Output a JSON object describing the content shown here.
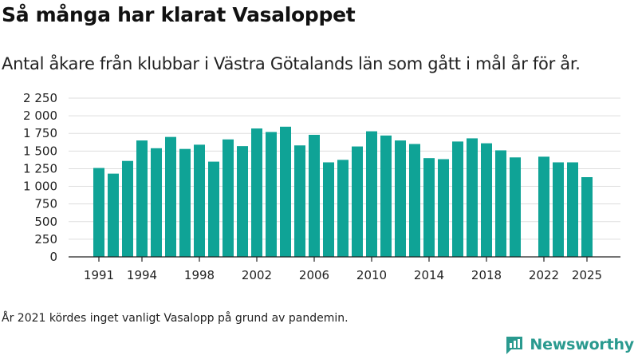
{
  "title": "Så många har klarat Vasaloppet",
  "subtitle": "Antal åkare från klubbar i Västra Götalands län som gått i mål år för år.",
  "footnote": "År 2021 kördes inget vanligt Vasalopp på grund av pandemin.",
  "brand": "Newsworthy",
  "colors": {
    "bar": "#0fa396",
    "grid": "#dddddd",
    "axis": "#222222",
    "brand": "#2a9a8f"
  },
  "chart_data": {
    "type": "bar",
    "ylim": [
      0,
      2250
    ],
    "yticks": [
      0,
      250,
      500,
      750,
      1000,
      1250,
      1500,
      1750,
      2000,
      2250
    ],
    "ytick_labels": [
      "0",
      "250",
      "500",
      "750",
      "1 000",
      "1 250",
      "1 500",
      "1 750",
      "2 000",
      "2 250"
    ],
    "xtick_labels": [
      "1991",
      "1994",
      "1998",
      "2002",
      "2006",
      "2010",
      "2014",
      "2018",
      "2022",
      "2025"
    ],
    "grid": true,
    "categories": [
      1991,
      1992,
      1993,
      1994,
      1995,
      1996,
      1997,
      1998,
      1999,
      2000,
      2001,
      2002,
      2003,
      2004,
      2005,
      2006,
      2007,
      2008,
      2009,
      2010,
      2011,
      2012,
      2013,
      2014,
      2015,
      2016,
      2017,
      2018,
      2019,
      2020,
      2021,
      2022,
      2023,
      2024,
      2025
    ],
    "values": [
      1260,
      1180,
      1360,
      1650,
      1540,
      1700,
      1530,
      1590,
      1350,
      1665,
      1570,
      1820,
      1770,
      1845,
      1580,
      1730,
      1340,
      1375,
      1565,
      1780,
      1720,
      1650,
      1600,
      1400,
      1385,
      1635,
      1680,
      1610,
      1510,
      1410,
      null,
      1420,
      1340,
      1340,
      1130
    ]
  }
}
